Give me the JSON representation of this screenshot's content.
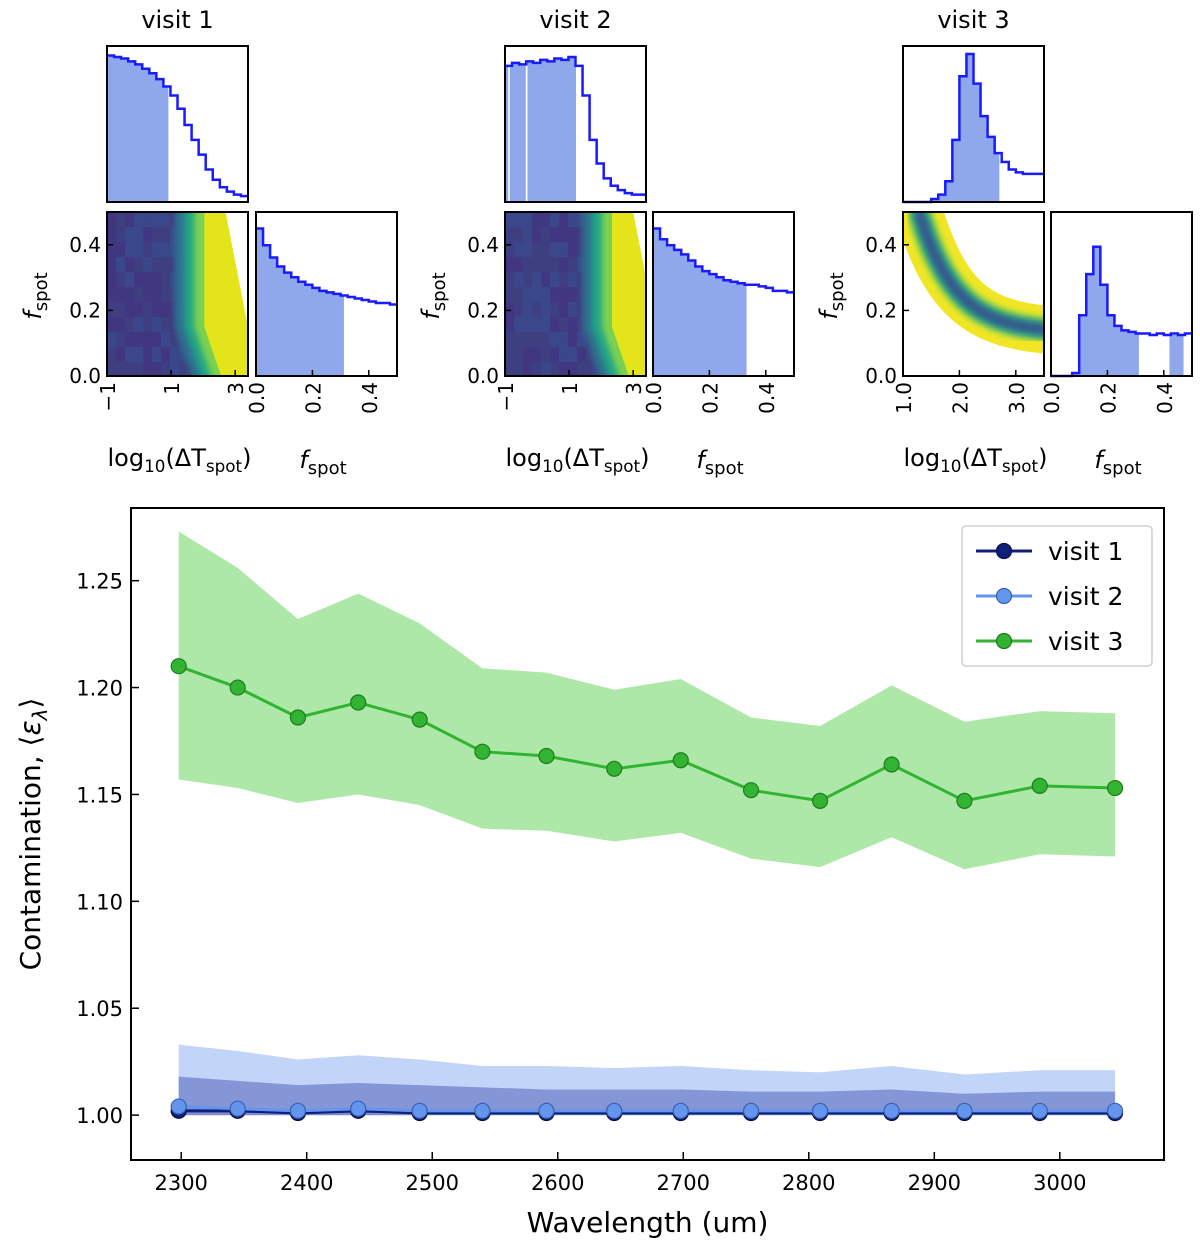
{
  "chart_data": [
    {
      "type": "corner",
      "title": "visit 1",
      "xlabel_main": "log10(ΔT_spot)",
      "xlabel_f": "f_spot",
      "ylabel": "f_spot",
      "x_ticks": [
        "−1",
        "1",
        "3"
      ],
      "x_tick_values": [
        -1,
        1,
        3
      ],
      "xlim": [
        -1,
        3.4
      ],
      "f_ticks": [
        "0.0",
        "0.2",
        "0.4"
      ],
      "f_tick_values": [
        0,
        0.2,
        0.4
      ],
      "flim": [
        0,
        0.5
      ],
      "y_ticks": [
        "0.0",
        "0.2",
        "0.4"
      ],
      "y_tick_values": [
        0,
        0.2,
        0.4
      ],
      "ylim": [
        0,
        0.5
      ],
      "hist_top": [
        0.99,
        0.98,
        0.97,
        0.95,
        0.93,
        0.9,
        0.87,
        0.83,
        0.78,
        0.72,
        0.63,
        0.52,
        0.42,
        0.32,
        0.22,
        0.15,
        0.1,
        0.07,
        0.05,
        0.04
      ],
      "hist_top_shaded_end": 0.9,
      "hist_f": [
        0.97,
        0.86,
        0.78,
        0.72,
        0.68,
        0.65,
        0.62,
        0.6,
        0.58,
        0.56,
        0.55,
        0.54,
        0.53,
        0.52,
        0.51,
        0.5,
        0.49,
        0.48,
        0.48,
        0.47
      ],
      "hist_f_shaded_end": 0.31,
      "density": "visit1"
    },
    {
      "type": "corner",
      "title": "visit 2",
      "xlabel_main": "log10(ΔT_spot)",
      "xlabel_f": "f_spot",
      "ylabel": "f_spot",
      "x_ticks": [
        "−1",
        "1",
        "3"
      ],
      "x_tick_values": [
        -1,
        1,
        3
      ],
      "xlim": [
        -1,
        3.4
      ],
      "f_ticks": [
        "0.0",
        "0.2",
        "0.4"
      ],
      "f_tick_values": [
        0,
        0.2,
        0.4
      ],
      "flim": [
        0,
        0.5
      ],
      "y_ticks": [
        "0.0",
        "0.2",
        "0.4"
      ],
      "y_tick_values": [
        0,
        0.2,
        0.4
      ],
      "ylim": [
        0,
        0.5
      ],
      "hist_top": [
        0.92,
        0.94,
        0.93,
        0.95,
        0.94,
        0.96,
        0.95,
        0.97,
        0.96,
        0.98,
        0.92,
        0.72,
        0.42,
        0.26,
        0.16,
        0.11,
        0.08,
        0.06,
        0.05,
        0.05
      ],
      "hist_top_shaded_end": 1.2,
      "hist_top_gaps": [
        [
          -0.9,
          -0.85
        ],
        [
          -0.35,
          -0.3
        ]
      ],
      "hist_f": [
        0.97,
        0.9,
        0.86,
        0.83,
        0.8,
        0.76,
        0.72,
        0.69,
        0.67,
        0.65,
        0.63,
        0.62,
        0.61,
        0.6,
        0.6,
        0.59,
        0.58,
        0.56,
        0.56,
        0.55
      ],
      "hist_f_shaded_end": 0.33,
      "density": "visit2"
    },
    {
      "type": "corner",
      "title": "visit 3",
      "xlabel_main": "log10(ΔT_spot)",
      "xlabel_f": "f_spot",
      "ylabel": "f_spot",
      "x_ticks": [
        "1.0",
        "2.0",
        "3.0"
      ],
      "x_tick_values": [
        1,
        2,
        3
      ],
      "xlim": [
        1,
        3.5
      ],
      "f_ticks": [
        "0.0",
        "0.2",
        "0.4"
      ],
      "f_tick_values": [
        0,
        0.2,
        0.4
      ],
      "flim": [
        0,
        0.5
      ],
      "y_ticks": [
        "0.0",
        "0.2",
        "0.4"
      ],
      "y_tick_values": [
        0,
        0.2,
        0.4
      ],
      "ylim": [
        0,
        0.5
      ],
      "hist_top": [
        0,
        0,
        0,
        0,
        0.02,
        0.05,
        0.14,
        0.42,
        0.85,
        1.0,
        0.8,
        0.58,
        0.44,
        0.33,
        0.27,
        0.22,
        0.2,
        0.19,
        0.19,
        0.19
      ],
      "hist_top_shaded_end": 2.7,
      "hist_f": [
        0,
        0,
        0,
        0.02,
        0.4,
        0.67,
        0.85,
        0.6,
        0.4,
        0.33,
        0.3,
        0.29,
        0.28,
        0.28,
        0.27,
        0.28,
        0.27,
        0.28,
        0.27,
        0.28
      ],
      "hist_f_shaded_end": 0.31,
      "hist_f_extra_shade": [
        [
          0.42,
          0.47
        ]
      ],
      "density": "visit3"
    },
    {
      "type": "line",
      "xlabel": "Wavelength (um)",
      "ylabel": "Contamination, ⟨ε_λ⟩",
      "x_ticks": [
        "2300",
        "2400",
        "2500",
        "2600",
        "2700",
        "2800",
        "2900",
        "3000"
      ],
      "x_tick_values": [
        2300,
        2400,
        2500,
        2600,
        2700,
        2800,
        2900,
        3000
      ],
      "xlim": [
        2260,
        3083
      ],
      "y_ticks": [
        "1.00",
        "1.05",
        "1.10",
        "1.15",
        "1.20",
        "1.25"
      ],
      "y_tick_values": [
        1.0,
        1.05,
        1.1,
        1.15,
        1.2,
        1.25
      ],
      "ylim": [
        0.979,
        1.284
      ],
      "x": [
        2298,
        2345,
        2393,
        2441,
        2490,
        2540,
        2591,
        2645,
        2698,
        2754,
        2809,
        2866,
        2924,
        2984,
        3044
      ],
      "series": [
        {
          "name": "visit 1",
          "color": "#0f1f7a",
          "values": [
            1.002,
            1.002,
            1.001,
            1.002,
            1.001,
            1.001,
            1.001,
            1.001,
            1.001,
            1.001,
            1.001,
            1.001,
            1.001,
            1.001,
            1.001
          ],
          "upper": [
            1.003,
            1.003,
            1.002,
            1.003,
            1.002,
            1.002,
            1.002,
            1.002,
            1.002,
            1.002,
            1.002,
            1.002,
            1.002,
            1.002,
            1.002
          ],
          "lower": [
            1.0,
            1.0,
            1.0,
            1.0,
            1.0,
            1.0,
            1.0,
            1.0,
            1.0,
            1.0,
            1.0,
            1.0,
            1.0,
            1.0,
            1.0
          ]
        },
        {
          "name": "visit 2",
          "color": "#6495ed",
          "values": [
            1.004,
            1.003,
            1.002,
            1.003,
            1.002,
            1.002,
            1.002,
            1.002,
            1.002,
            1.002,
            1.002,
            1.002,
            1.002,
            1.002,
            1.002
          ],
          "upper": [
            1.033,
            1.03,
            1.026,
            1.028,
            1.026,
            1.023,
            1.023,
            1.022,
            1.023,
            1.021,
            1.02,
            1.023,
            1.019,
            1.021,
            1.021
          ],
          "lower": [
            1.0,
            1.0,
            1.0,
            1.0,
            1.0,
            1.0,
            1.0,
            1.0,
            1.0,
            1.0,
            1.0,
            1.0,
            1.0,
            1.0,
            1.0
          ],
          "inner_upper": [
            1.018,
            1.016,
            1.014,
            1.015,
            1.014,
            1.013,
            1.012,
            1.012,
            1.012,
            1.011,
            1.011,
            1.012,
            1.01,
            1.011,
            1.011
          ]
        },
        {
          "name": "visit 3",
          "color": "#32b432",
          "values": [
            1.21,
            1.2,
            1.186,
            1.193,
            1.185,
            1.17,
            1.168,
            1.162,
            1.166,
            1.152,
            1.147,
            1.164,
            1.147,
            1.154,
            1.153
          ],
          "upper": [
            1.273,
            1.256,
            1.232,
            1.244,
            1.23,
            1.209,
            1.207,
            1.199,
            1.204,
            1.186,
            1.182,
            1.201,
            1.184,
            1.189,
            1.188
          ],
          "lower": [
            1.157,
            1.153,
            1.146,
            1.15,
            1.145,
            1.134,
            1.133,
            1.128,
            1.132,
            1.12,
            1.116,
            1.13,
            1.115,
            1.122,
            1.121
          ]
        }
      ],
      "legend": {
        "placement": "top-right",
        "entries": [
          "visit 1",
          "visit 2",
          "visit 3"
        ]
      }
    }
  ]
}
